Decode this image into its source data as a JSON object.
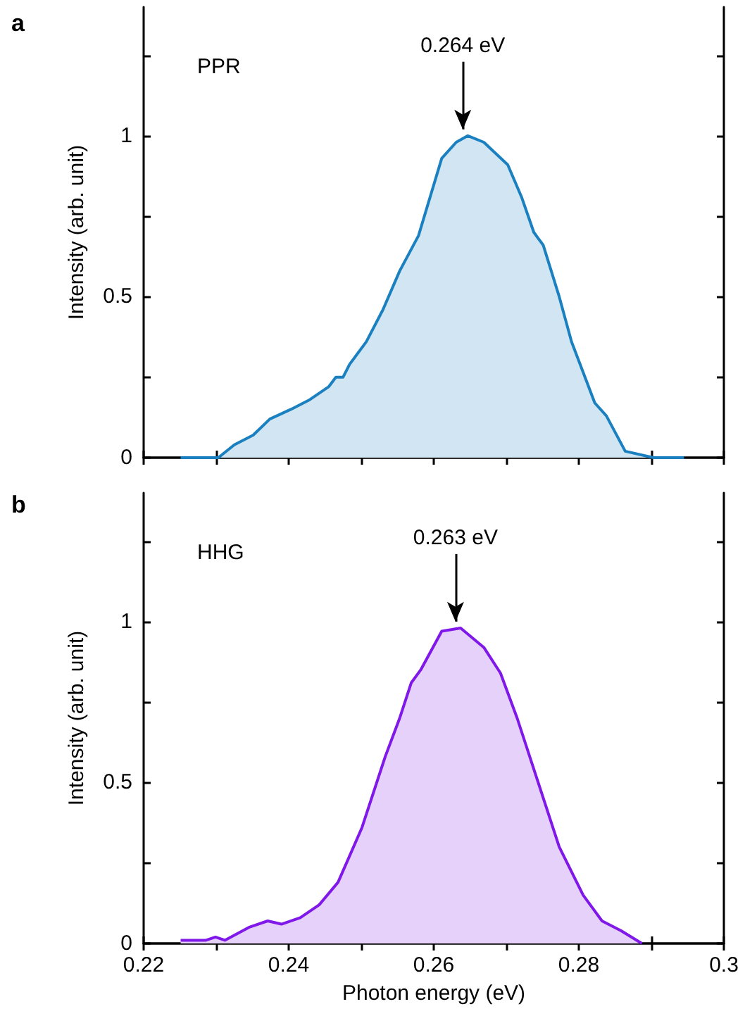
{
  "chart_data": [
    {
      "type": "area",
      "title": "a",
      "ylabel": "Intensity (arb. unit)",
      "tick_labels": "y",
      "grid": false,
      "marker": "none",
      "annotations": [
        "PPR",
        {
          "text": "0.264 eV",
          "x": 0.264,
          "y": 1
        }
      ],
      "xlim": [
        0.22,
        0.3
      ],
      "ylim": [
        0,
        1.4
      ],
      "xticks": [
        0.22,
        {
          "value": 0.23,
          "label": null
        },
        0.24,
        {
          "value": 0.25,
          "label": null
        },
        0.26,
        {
          "value": 0.27,
          "label": null
        },
        0.28,
        {
          "value": 0.29,
          "label": null
        },
        0.3
      ],
      "yticks": [
        0,
        {
          "value": 0.25,
          "label": null
        },
        0.5,
        {
          "value": 0.75,
          "label": null
        },
        1,
        {
          "value": 1.25,
          "label": null
        }
      ],
      "series": [
        {
          "color": "#1a80c0",
          "x": [
            0.2251,
            0.2303,
            0.2325,
            0.2351,
            0.2374,
            0.2403,
            0.2429,
            0.2455,
            0.2465,
            0.2475,
            0.2484,
            0.2507,
            0.253,
            0.2553,
            0.2579,
            0.2611,
            0.2631,
            0.2647,
            0.2669,
            0.2702,
            0.2721,
            0.2738,
            0.2751,
            0.2773,
            0.279,
            0.2822,
            0.2838,
            0.2864,
            0.2903,
            0.2945
          ],
          "values": [
            0,
            0,
            0.04,
            0.07,
            0.12,
            0.15,
            0.18,
            0.22,
            0.25,
            0.25,
            0.29,
            0.36,
            0.46,
            0.58,
            0.69,
            0.93,
            0.98,
            1,
            0.98,
            0.91,
            0.81,
            0.7,
            0.66,
            0.5,
            0.36,
            0.17,
            0.13,
            0.02,
            0,
            0
          ]
        }
      ]
    },
    {
      "type": "area",
      "title": "b",
      "xlabel": "Photon energy (eV)",
      "ylabel": "Intensity (arb. unit)",
      "grid": false,
      "marker": "none",
      "annotations": [
        "HHG",
        {
          "text": "0.263 eV",
          "x": 0.263,
          "y": 0.98
        }
      ],
      "xlim": [
        0.22,
        0.3
      ],
      "ylim": [
        0,
        1.4
      ],
      "xticks": [
        0.22,
        {
          "value": 0.23,
          "label": null
        },
        0.24,
        {
          "value": 0.25,
          "label": null
        },
        0.26,
        {
          "value": 0.27,
          "label": null
        },
        0.28,
        {
          "value": 0.29,
          "label": null
        },
        0.3
      ],
      "yticks": [
        0,
        {
          "value": 0.25,
          "label": null
        },
        0.5,
        {
          "value": 0.75,
          "label": null
        },
        1,
        {
          "value": 1.25,
          "label": null
        }
      ],
      "series": [
        {
          "color": "#7f18e8",
          "x": [
            0.2251,
            0.2286,
            0.2299,
            0.2312,
            0.2345,
            0.2371,
            0.239,
            0.2416,
            0.2442,
            0.2468,
            0.2501,
            0.2533,
            0.2553,
            0.2569,
            0.2582,
            0.2611,
            0.2637,
            0.2669,
            0.2692,
            0.2715,
            0.2744,
            0.2773,
            0.2806,
            0.2832,
            0.2858,
            0.2887
          ],
          "values": [
            0.01,
            0.01,
            0.02,
            0.01,
            0.05,
            0.07,
            0.06,
            0.08,
            0.12,
            0.19,
            0.36,
            0.58,
            0.7,
            0.81,
            0.85,
            0.97,
            0.98,
            0.92,
            0.84,
            0.7,
            0.5,
            0.3,
            0.15,
            0.07,
            0.04,
            0
          ]
        }
      ]
    }
  ]
}
